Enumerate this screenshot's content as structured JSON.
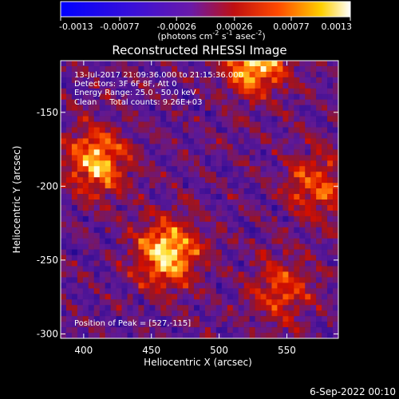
{
  "colorbar": {
    "ticks": [
      "-0.0013",
      "-0.00077",
      "-0.00026",
      "0.00026",
      "0.00077",
      "0.0013"
    ],
    "min": -0.0013,
    "max": 0.0013,
    "unit_prefix": "(photons cm",
    "unit_exp1": "-2",
    "unit_mid1": " s",
    "unit_exp2": "-1",
    "unit_mid2": " asec",
    "unit_exp3": "-2",
    "unit_suffix": ")"
  },
  "chart_data": {
    "type": "heatmap",
    "title": "Reconstructed RHESSI Image",
    "xlabel": "Heliocentric X (arcsec)",
    "ylabel": "Heliocentric Y (arcsec)",
    "xlim": [
      383,
      588
    ],
    "ylim": [
      -303,
      -115
    ],
    "xticks": [
      400,
      450,
      500,
      550
    ],
    "yticks": [
      -150,
      -200,
      -250,
      -300
    ],
    "grid": false,
    "colormap": "blue-purple-red-yellow-white (RHESSI)",
    "annotations": [
      "13-Jul-2017 21:09:36.000 to 21:15:36.000",
      "Detectors: 3F 6F 8F, Att 0",
      "Energy Range: 25.0 - 50.0 keV",
      "Clean     Total counts: 9.26E+03"
    ],
    "peak_label": "Position of Peak = [527,-115]",
    "peak": [
      527,
      -115
    ],
    "bright_sources": [
      {
        "x": 462,
        "y": -245,
        "level": 1.0
      },
      {
        "x": 410,
        "y": -183,
        "level": 0.85
      },
      {
        "x": 527,
        "y": -115,
        "level": 1.0
      },
      {
        "x": 572,
        "y": -200,
        "level": 0.6
      },
      {
        "x": 545,
        "y": -270,
        "level": 0.55
      }
    ]
  },
  "timestamp": "6-Sep-2022 00:10"
}
